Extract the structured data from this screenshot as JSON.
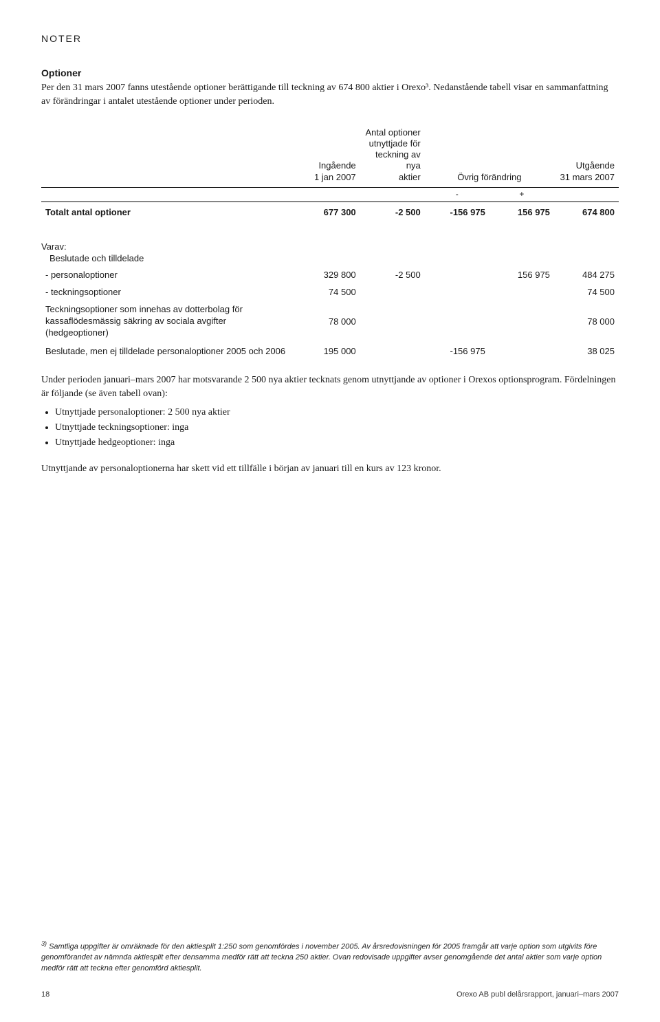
{
  "header": {
    "section": "NOTER"
  },
  "options_section": {
    "title": "Optioner",
    "paragraph": "Per den 31 mars 2007 fanns utestående optioner berättigande till teckning av 674 800 aktier i Orexo³. Nedanstående tabell visar en sammanfattning av förändringar i antalet utestående optioner under perioden."
  },
  "table1": {
    "columns": {
      "c1": "Ingående\n1 jan 2007",
      "c2": "Antal optioner\nutnyttjade för\nteckning av nya\naktier",
      "c3": "Övrig förändring",
      "c4": "Utgående\n31 mars 2007"
    },
    "sign_minus": "-",
    "sign_plus": "+",
    "total_row": {
      "label": "Totalt antal optioner",
      "c1": "677 300",
      "c2": "-2 500",
      "c3m": "-156 975",
      "c3p": "156 975",
      "c4": "674 800"
    }
  },
  "varav": {
    "head": "Varav:",
    "sub": "Beslutade och tilldelade",
    "rows": [
      {
        "label": "- personaloptioner",
        "c1": "329 800",
        "c2": "-2 500",
        "c3m": "",
        "c3p": "156 975",
        "c4": "484 275"
      },
      {
        "label": "- teckningsoptioner",
        "c1": "74 500",
        "c2": "",
        "c3m": "",
        "c3p": "",
        "c4": "74 500"
      },
      {
        "label": "Teckningsoptioner som innehas av dotterbolag för kassaflödesmässig säkring av sociala avgifter (hedgeoptioner)",
        "c1": "78 000",
        "c2": "",
        "c3m": "",
        "c3p": "",
        "c4": "78 000"
      },
      {
        "label": "Beslutade, men ej tilldelade personaloptioner 2005 och 2006",
        "c1": "195 000",
        "c2": "",
        "c3m": "-156 975",
        "c3p": "",
        "c4": "38 025"
      }
    ]
  },
  "body2": {
    "p1": "Under perioden januari–mars 2007 har motsvarande 2 500 nya aktier tecknats genom utnyttjande av optioner i Orexos optionsprogram. Fördelningen är följande (se även tabell ovan):",
    "bullets": [
      "Utnyttjade personaloptioner: 2 500 nya aktier",
      "Utnyttjade teckningsoptioner: inga",
      "Utnyttjade hedgeoptioner: inga"
    ],
    "p2": "Utnyttjande av personaloptionerna har skett vid ett tillfälle i början av januari till en kurs av 123 kronor."
  },
  "footnote": {
    "marker": "3)",
    "text": "Samtliga uppgifter är omräknade för den aktiesplit 1:250 som genomfördes i november 2005. Av årsredovisningen för 2005 framgår att varje option som utgivits före genomförandet av nämnda aktiesplit efter densamma medför rätt att teckna 250 aktier. Ovan redovisade uppgifter avser genomgående det antal aktier som varje option medför rätt att teckna efter genomförd aktiesplit."
  },
  "footer": {
    "page": "18",
    "right": "Orexo AB publ delårsrapport, januari–mars 2007"
  }
}
